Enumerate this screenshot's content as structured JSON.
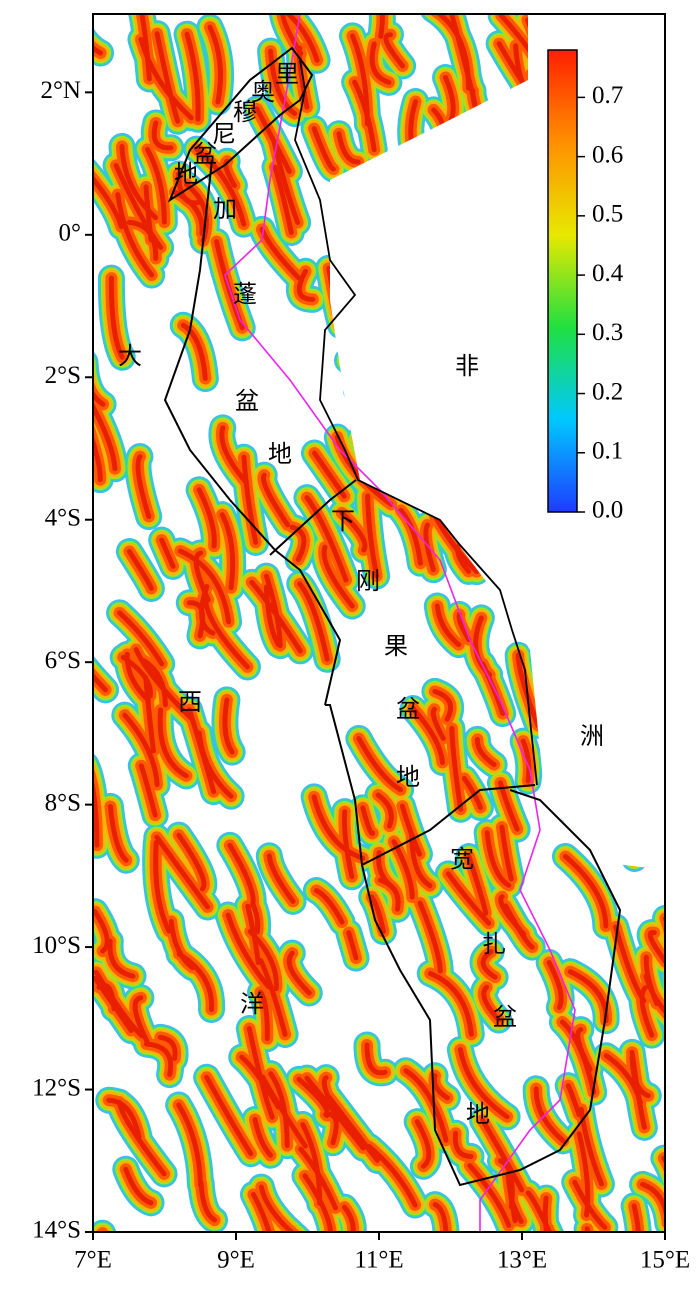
{
  "chart_data": {
    "type": "map",
    "xlim": [
      7,
      15
    ],
    "ylim": [
      -14,
      3.1
    ],
    "xticks": [
      {
        "value": 7,
        "label": "7°E"
      },
      {
        "value": 9,
        "label": "9°E"
      },
      {
        "value": 11,
        "label": "11°E"
      },
      {
        "value": 13,
        "label": "13°E"
      },
      {
        "value": 15,
        "label": "15°E"
      }
    ],
    "yticks": [
      {
        "value": 2,
        "label": "2°N"
      },
      {
        "value": 0,
        "label": "0°"
      },
      {
        "value": -2,
        "label": "2°S"
      },
      {
        "value": -4,
        "label": "4°S"
      },
      {
        "value": -6,
        "label": "6°S"
      },
      {
        "value": -8,
        "label": "8°S"
      },
      {
        "value": -10,
        "label": "10°S"
      },
      {
        "value": -12,
        "label": "12°S"
      },
      {
        "value": -14,
        "label": "14°S"
      }
    ],
    "colorbar": {
      "lim": [
        0,
        0.78
      ],
      "ticks": [
        {
          "value": 0,
          "label": "0.0"
        },
        0.1,
        0.2,
        0.3,
        0.4,
        0.5,
        0.6,
        0.7
      ],
      "colors": [
        "#1e3cff",
        "#00c8ff",
        "#20e040",
        "#e8e800",
        "#ff9000",
        "#ff2000"
      ]
    },
    "annotations": [
      "奥",
      "里",
      "穆",
      "尼",
      "盆",
      "地",
      "加",
      "蓬",
      "盆",
      "地",
      "下",
      "刚",
      "果",
      "盆",
      "地",
      "宽",
      "扎",
      "盆",
      "地",
      "大",
      "西",
      "洋",
      "非",
      "洲"
    ]
  }
}
